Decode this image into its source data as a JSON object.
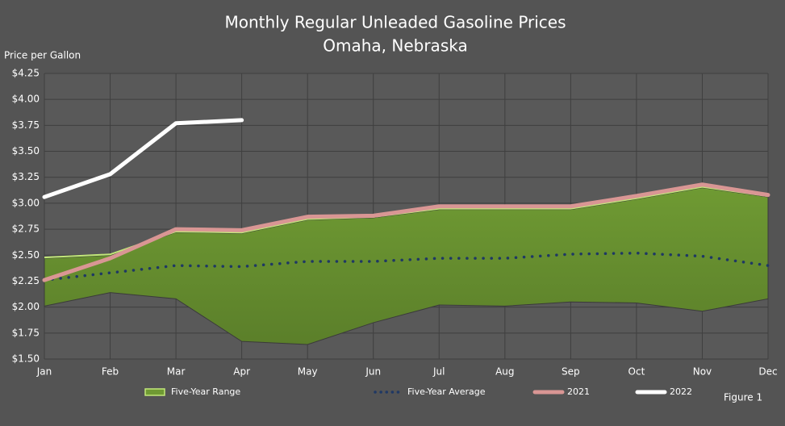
{
  "chart_data": {
    "type": "range-line",
    "title": "Monthly Regular Unleaded Gasoline Prices",
    "subtitle": "Omaha, Nebraska",
    "y_label": "Price per Gallon",
    "annotation": "Figure 1",
    "categories": [
      "Jan",
      "Feb",
      "Mar",
      "Apr",
      "May",
      "Jun",
      "Jul",
      "Aug",
      "Sep",
      "Oct",
      "Nov",
      "Dec"
    ],
    "ylim": [
      1.5,
      4.25
    ],
    "yticks": [
      {
        "value": 1.5,
        "label": "$1.50"
      },
      {
        "value": 1.75,
        "label": "$1.75"
      },
      {
        "value": 2,
        "label": "$2.00"
      },
      {
        "value": 2.25,
        "label": "$2.25"
      },
      {
        "value": 2.5,
        "label": "$2.50"
      },
      {
        "value": 2.75,
        "label": "$2.75"
      },
      {
        "value": 3,
        "label": "$3.00"
      },
      {
        "value": 3.25,
        "label": "$3.25"
      },
      {
        "value": 3.5,
        "label": "$3.50"
      },
      {
        "value": 3.75,
        "label": "$3.75"
      },
      {
        "value": 4,
        "label": "$4.00"
      },
      {
        "value": 4.25,
        "label": "$4.25"
      }
    ],
    "grid": true,
    "range": {
      "name": "Five-Year Range",
      "color": "#6f9a33",
      "edge_color": "#c2e879",
      "low": [
        2.01,
        2.14,
        2.08,
        1.67,
        1.64,
        1.85,
        2.02,
        2.01,
        2.05,
        2.04,
        1.96,
        2.08
      ],
      "high": [
        2.47,
        2.5,
        2.72,
        2.71,
        2.84,
        2.86,
        2.94,
        2.94,
        2.94,
        3.04,
        3.15,
        3.06
      ]
    },
    "series": [
      {
        "name": "Five-Year Average",
        "color": "#1f3864",
        "dash": "dotted",
        "values": [
          2.26,
          2.33,
          2.4,
          2.39,
          2.44,
          2.44,
          2.47,
          2.47,
          2.51,
          2.52,
          2.49,
          2.4
        ]
      },
      {
        "name": "2021",
        "color": "#d99694",
        "dash": "solid",
        "values": [
          2.26,
          2.47,
          2.75,
          2.74,
          2.87,
          2.88,
          2.97,
          2.97,
          2.97,
          3.07,
          3.18,
          3.08
        ]
      },
      {
        "name": "2022",
        "color": "#ffffff",
        "dash": "solid",
        "values": [
          3.06,
          3.28,
          3.77,
          3.8,
          null,
          null,
          null,
          null,
          null,
          null,
          null,
          null
        ]
      }
    ]
  }
}
